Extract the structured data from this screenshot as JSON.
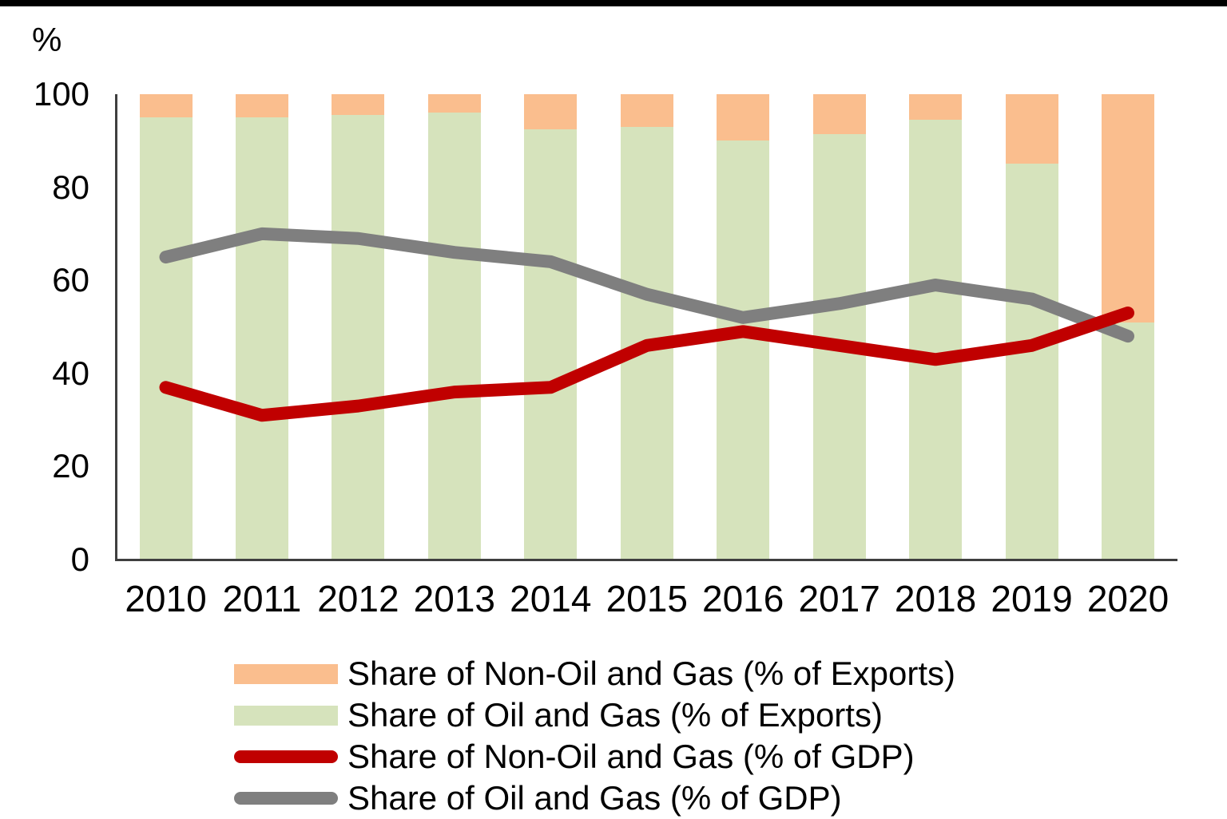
{
  "top_decorative_bar": true,
  "chart_data": {
    "type": "bar",
    "subtype": "stacked-bars-with-lines-overlay",
    "title": "",
    "ylabel": "%",
    "xlabel": "",
    "ylim": [
      0,
      100
    ],
    "yticks": [
      0,
      20,
      40,
      60,
      80,
      100
    ],
    "grid": false,
    "legend_position": "bottom",
    "categories": [
      "2010",
      "2011",
      "2012",
      "2013",
      "2014",
      "2015",
      "2016",
      "2017",
      "2018",
      "2019",
      "2020"
    ],
    "series": [
      {
        "name": "Share of Non-Oil and Gas (% of Exports)",
        "type": "bar",
        "stack_order": "top",
        "color": "#FABE8E",
        "values": [
          5,
          5,
          4.5,
          4,
          7.5,
          7,
          10,
          8.5,
          5.5,
          15,
          49
        ]
      },
      {
        "name": "Share of Oil and Gas (% of Exports)",
        "type": "bar",
        "stack_order": "bottom",
        "color": "#D6E3BC",
        "values": [
          95,
          95,
          95.5,
          96,
          92.5,
          93,
          90,
          91.5,
          94.5,
          85,
          51
        ]
      },
      {
        "name": "Share of Non-Oil and Gas (% of GDP)",
        "type": "line",
        "color": "#C00000",
        "values": [
          37,
          31,
          33,
          36,
          37,
          46,
          49,
          46,
          43,
          46,
          53
        ]
      },
      {
        "name": "Share of Oil and Gas (% of GDP)",
        "type": "line",
        "color": "#7F7F7F",
        "values": [
          65,
          70,
          69,
          66,
          64,
          57,
          52,
          55,
          59,
          56,
          48
        ]
      }
    ]
  }
}
